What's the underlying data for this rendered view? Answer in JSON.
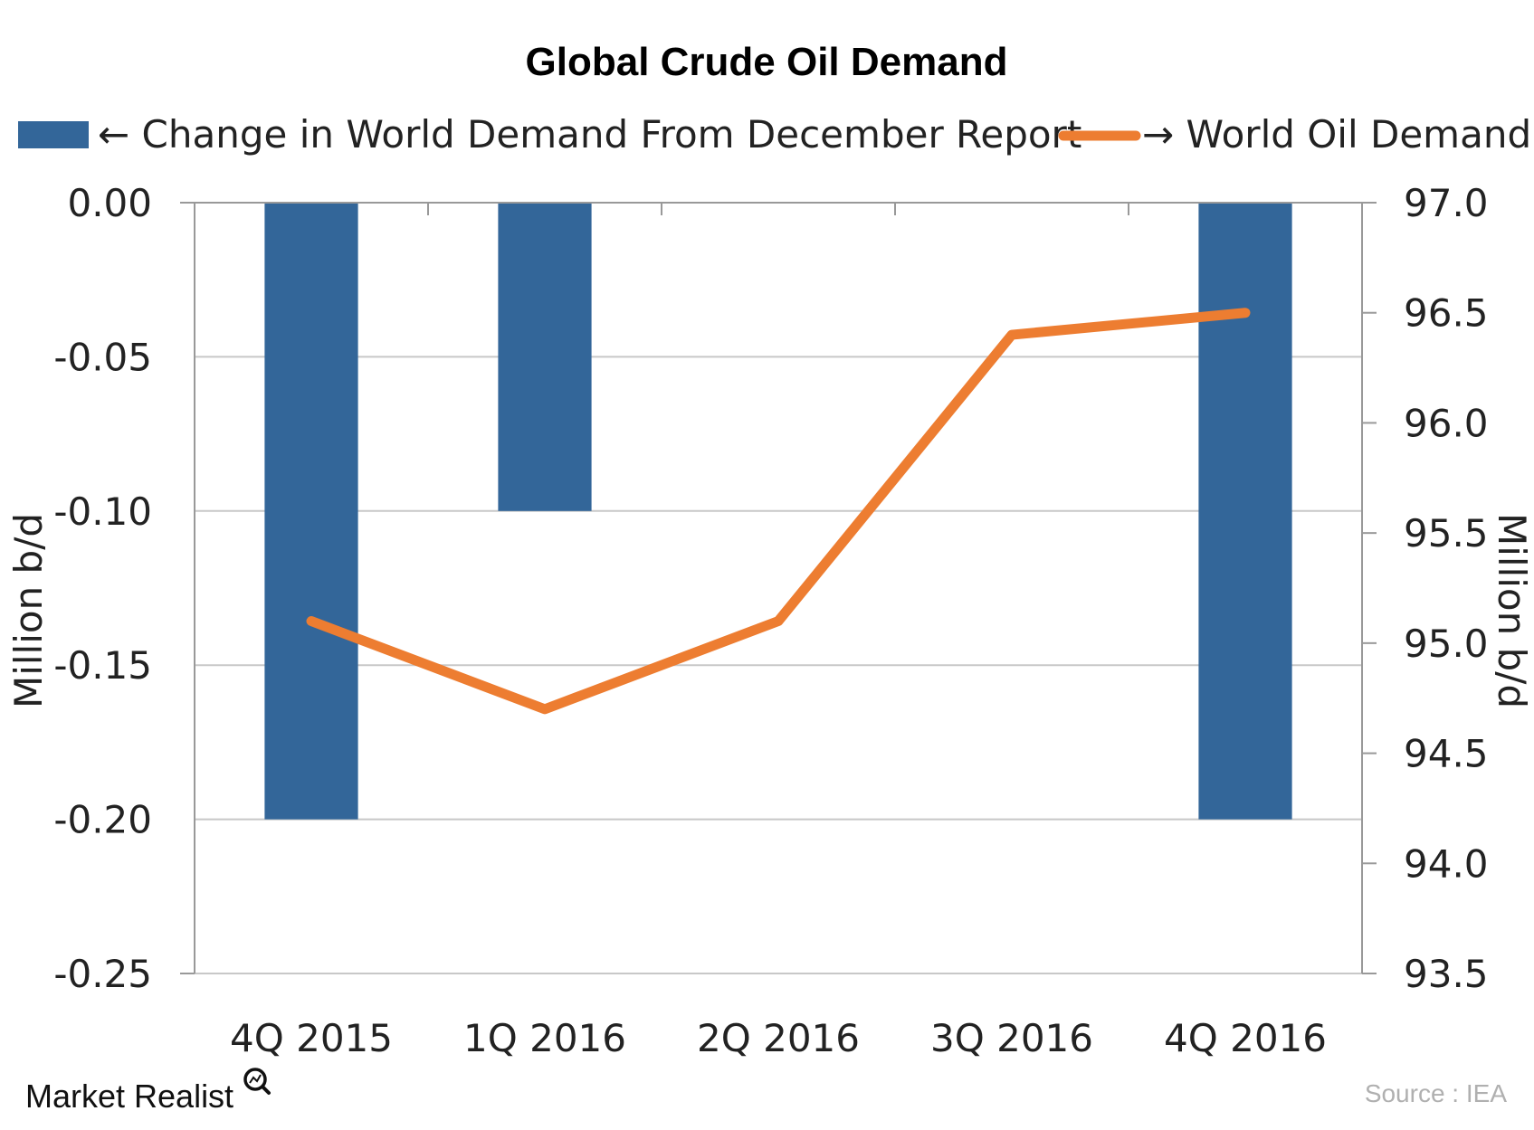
{
  "chart_data": {
    "type": "bar",
    "title": "Global Crude Oil Demand",
    "categories": [
      "4Q 2015",
      "1Q 2016",
      "2Q  2016",
      "3Q 2016",
      "4Q  2016"
    ],
    "series": [
      {
        "name": "Change in World Demand From December Report",
        "legend_label": "← Change in World Demand From December Report",
        "type": "bar",
        "axis": "left",
        "values": [
          -0.2,
          -0.1,
          null,
          null,
          -0.2
        ],
        "color": "#336699"
      },
      {
        "name": "World Oil Demand",
        "legend_label": "→ World Oil Demand",
        "type": "line",
        "axis": "right",
        "values": [
          95.1,
          94.7,
          95.1,
          96.4,
          96.5
        ],
        "color": "#ED7D31"
      }
    ],
    "y_left": {
      "label": "Million b/d",
      "range": [
        -0.25,
        0
      ],
      "ticks": [
        "0.00",
        "-0.05",
        "-0.10",
        "-0.15",
        "-0.20",
        "-0.25"
      ],
      "tick_values": [
        0,
        -0.05,
        -0.1,
        -0.15,
        -0.2,
        -0.25
      ]
    },
    "y_right": {
      "label": "Million b/d",
      "range": [
        93.5,
        97.0
      ],
      "ticks": [
        "97.0",
        "96.5",
        "96.0",
        "95.5",
        "95.0",
        "94.5",
        "94.0",
        "93.5"
      ],
      "tick_values": [
        97.0,
        96.5,
        96.0,
        95.5,
        95.0,
        94.5,
        94.0,
        93.5
      ]
    },
    "grid": true,
    "legend_position": "top"
  },
  "branding": {
    "logo_text": "Market Realist",
    "source": "Source : IEA"
  },
  "colors": {
    "gridline": "#c8c8c8",
    "axis": "#999999"
  }
}
